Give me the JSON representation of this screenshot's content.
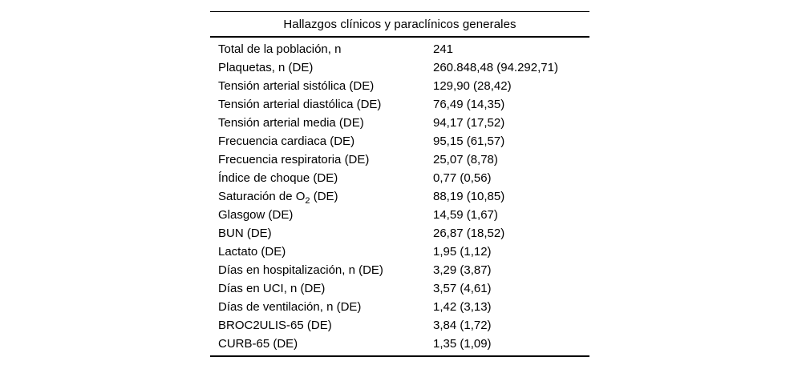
{
  "table": {
    "title": "Hallazgos clínicos y paraclínicos generales",
    "rows": [
      {
        "label": "Total de la población, n",
        "value": "241"
      },
      {
        "label": "Plaquetas, n (DE)",
        "value": "260.848,48 (94.292,71)"
      },
      {
        "label": "Tensión arterial sistólica (DE)",
        "value": "129,90 (28,42)"
      },
      {
        "label": "Tensión arterial diastólica (DE)",
        "value": "76,49 (14,35)"
      },
      {
        "label": "Tensión arterial media (DE)",
        "value": "94,17 (17,52)"
      },
      {
        "label": "Frecuencia cardiaca (DE)",
        "value": "95,15 (61,57)"
      },
      {
        "label": "Frecuencia respiratoria (DE)",
        "value": "25,07 (8,78)"
      },
      {
        "label": "Índice de choque (DE)",
        "value": "0,77 (0,56)"
      },
      {
        "label": "Saturación de O₂ (DE)",
        "value": "88,19 (10,85)"
      },
      {
        "label": "Glasgow (DE)",
        "value": "14,59 (1,67)"
      },
      {
        "label": "BUN (DE)",
        "value": "26,87 (18,52)"
      },
      {
        "label": "Lactato (DE)",
        "value": "1,95 (1,12)"
      },
      {
        "label": "Días en hospitalización, n (DE)",
        "value": "3,29 (3,87)"
      },
      {
        "label": "Días en UCI, n (DE)",
        "value": "3,57 (4,61)"
      },
      {
        "label": "Días de ventilación, n (DE)",
        "value": "1,42 (3,13)"
      },
      {
        "label": "BROC2ULIS-65 (DE)",
        "value": "3,84 (1,72)"
      },
      {
        "label": "CURB-65 (DE)",
        "value": "1,35 (1,09)"
      }
    ]
  },
  "colors": {
    "background": "#ffffff",
    "text": "#000000",
    "rule": "#000000"
  }
}
